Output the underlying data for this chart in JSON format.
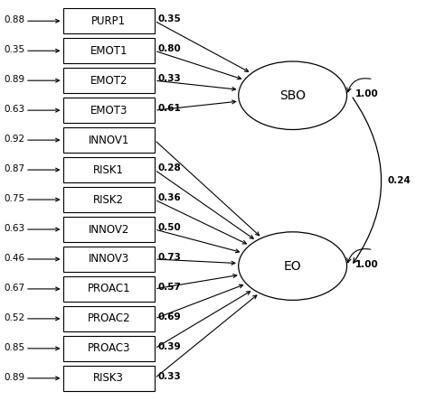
{
  "sbo_indicators": [
    {
      "label": "PURP1",
      "error": "0.88",
      "loading": "0.35"
    },
    {
      "label": "EMOT1",
      "error": "0.35",
      "loading": "0.80"
    },
    {
      "label": "EMOT2",
      "error": "0.89",
      "loading": "0.33"
    },
    {
      "label": "EMOT3",
      "error": "0.63",
      "loading": "0.61"
    }
  ],
  "eo_indicators": [
    {
      "label": "INNOV1",
      "error": "0.92",
      "loading": null
    },
    {
      "label": "RISK1",
      "error": "0.87",
      "loading": "0.28"
    },
    {
      "label": "RISK2",
      "error": "0.75",
      "loading": "0.36"
    },
    {
      "label": "INNOV2",
      "error": "0.63",
      "loading": "0.50"
    },
    {
      "label": "INNOV3",
      "error": "0.46",
      "loading": "0.73"
    },
    {
      "label": "PROAC1",
      "error": "0.67",
      "loading": "0.57"
    },
    {
      "label": "PROAC2",
      "error": "0.52",
      "loading": "0.69"
    },
    {
      "label": "PROAC3",
      "error": "0.85",
      "loading": "0.39"
    },
    {
      "label": "RISK3",
      "error": "0.89",
      "loading": "0.33"
    }
  ],
  "sbo_label": "SBO",
  "eo_label": "EO",
  "sbo_self_loading": "1.00",
  "eo_self_loading": "1.00",
  "correlation": "0.24",
  "bg_color": "#ffffff",
  "line_color": "#000000",
  "text_color": "#000000"
}
